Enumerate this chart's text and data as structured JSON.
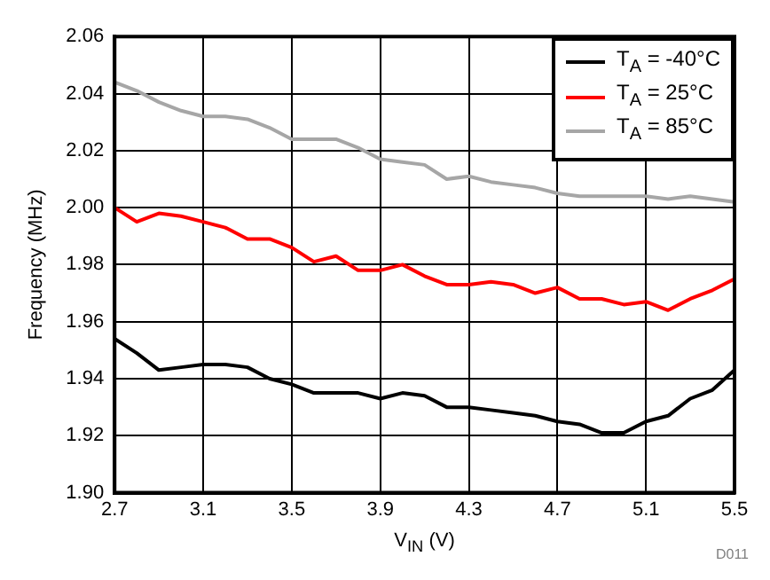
{
  "chart_data": {
    "type": "line",
    "xlabel": "V$_{IN}$ (V)",
    "ylabel": "Frequency (MHz)",
    "x": [
      2.7,
      2.8,
      2.9,
      3.0,
      3.1,
      3.2,
      3.3,
      3.4,
      3.5,
      3.6,
      3.7,
      3.8,
      3.9,
      4.0,
      4.1,
      4.2,
      4.3,
      4.4,
      4.5,
      4.6,
      4.7,
      4.8,
      4.9,
      5.0,
      5.1,
      5.2,
      5.3,
      5.4,
      5.5
    ],
    "series": [
      {
        "name": "T$_{A}$ = -40°C",
        "color": "#000000",
        "values": [
          1.954,
          1.949,
          1.943,
          1.944,
          1.945,
          1.945,
          1.944,
          1.94,
          1.938,
          1.935,
          1.935,
          1.935,
          1.933,
          1.935,
          1.934,
          1.93,
          1.93,
          1.929,
          1.928,
          1.927,
          1.925,
          1.924,
          1.921,
          1.921,
          1.925,
          1.927,
          1.933,
          1.936,
          1.943
        ]
      },
      {
        "name": "T$_{A}$ = 25°C",
        "color": "#ff0000",
        "values": [
          2.0,
          1.995,
          1.998,
          1.997,
          1.995,
          1.993,
          1.989,
          1.989,
          1.986,
          1.981,
          1.983,
          1.978,
          1.978,
          1.98,
          1.976,
          1.973,
          1.973,
          1.974,
          1.973,
          1.97,
          1.972,
          1.968,
          1.968,
          1.966,
          1.967,
          1.964,
          1.968,
          1.971,
          1.975
        ]
      },
      {
        "name": "T$_{A}$ = 85°C",
        "color": "#a6a6a6",
        "values": [
          2.044,
          2.041,
          2.037,
          2.034,
          2.032,
          2.032,
          2.031,
          2.028,
          2.024,
          2.024,
          2.024,
          2.021,
          2.017,
          2.016,
          2.015,
          2.01,
          2.011,
          2.009,
          2.008,
          2.007,
          2.005,
          2.004,
          2.004,
          2.004,
          2.004,
          2.003,
          2.004,
          2.003,
          2.002
        ]
      }
    ],
    "xlim": [
      2.7,
      5.5
    ],
    "xticks": [
      2.7,
      3.1,
      3.5,
      3.9,
      4.3,
      4.7,
      5.1,
      5.5
    ],
    "ylim": [
      1.9,
      2.06
    ],
    "yticks": [
      {
        "value": 1.9,
        "label": "1.90"
      },
      1.92,
      1.94,
      1.96,
      1.98,
      {
        "value": 2.0,
        "label": "2.00"
      },
      2.02,
      2.04,
      2.06
    ],
    "grid": true,
    "legend": "top right",
    "marker": "none",
    "line_style": "solid",
    "annotations": [
      "D011"
    ]
  }
}
